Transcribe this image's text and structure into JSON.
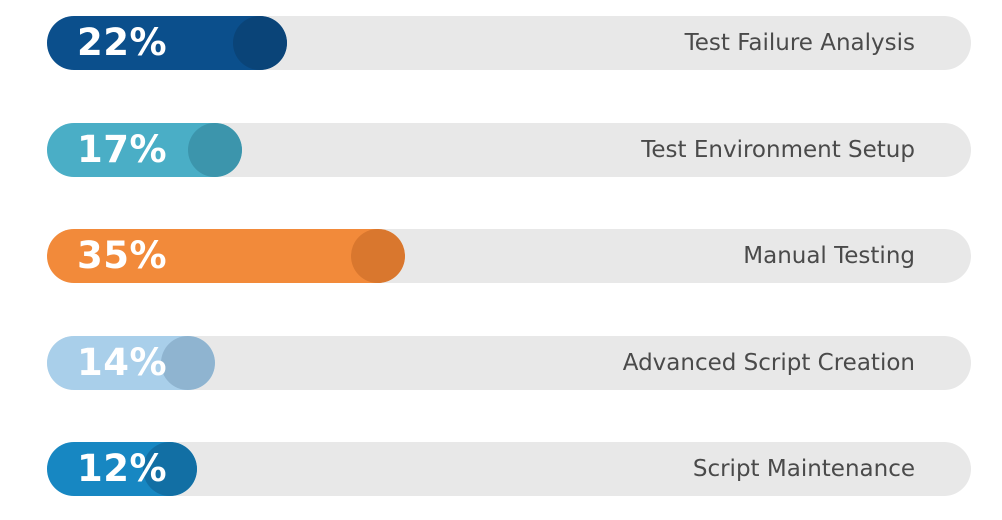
{
  "chart_data": {
    "type": "bar",
    "orientation": "horizontal",
    "categories": [
      "Test Failure Analysis",
      "Test Environment Setup",
      "Manual Testing",
      "Advanced Script Creation",
      "Script Maintenance"
    ],
    "values": [
      22,
      17,
      35,
      14,
      12
    ],
    "value_labels": [
      "22%",
      "17%",
      "35%",
      "14%",
      "12%"
    ],
    "unit": "%",
    "colors": [
      "#0b4f8c",
      "#4aaec6",
      "#f28a3a",
      "#a9cfea",
      "#1787c2"
    ],
    "knob_colors": [
      "#0a4478",
      "#3c95ac",
      "#d9772e",
      "#8fb4d0",
      "#126fa4"
    ],
    "track_color": "#e8e8e8",
    "title": "",
    "xlabel": "",
    "ylabel": "",
    "xlim": [
      0,
      100
    ]
  }
}
